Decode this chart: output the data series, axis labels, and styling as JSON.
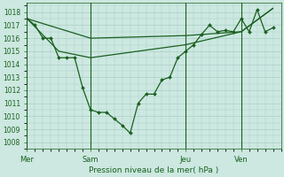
{
  "background_color": "#cce8e0",
  "grid_color": "#aacfc8",
  "line_color": "#1a6020",
  "text_color": "#1a6020",
  "xlabel": "Pression niveau de la mer( hPa )",
  "ylim": [
    1007.5,
    1018.7
  ],
  "yticks": [
    1008,
    1009,
    1010,
    1011,
    1012,
    1013,
    1014,
    1015,
    1016,
    1017,
    1018
  ],
  "day_labels": [
    "Mer",
    "Sam",
    "Jeu",
    "Ven"
  ],
  "day_positions": [
    0,
    8,
    20,
    27
  ],
  "xlim": [
    0,
    32
  ],
  "series1_x": [
    0,
    1,
    2,
    3,
    4,
    5,
    6,
    7,
    8,
    9,
    10,
    11,
    12,
    13,
    14,
    15,
    16,
    17,
    18,
    19,
    20,
    21,
    22,
    23,
    24,
    25,
    26,
    27,
    28,
    29,
    30,
    31
  ],
  "series1_y": [
    1017.5,
    1017.0,
    1016.0,
    1016.0,
    1014.5,
    1014.5,
    1014.5,
    1012.2,
    1010.5,
    1010.3,
    1010.3,
    1009.8,
    1009.3,
    1008.7,
    1011.0,
    1011.7,
    1011.7,
    1012.8,
    1013.0,
    1014.5,
    1015.0,
    1015.5,
    1016.3,
    1017.0,
    1016.5,
    1016.6,
    1016.5,
    1017.5,
    1016.5,
    1018.2,
    1016.5,
    1016.8
  ],
  "series2_x": [
    0,
    8,
    20,
    27,
    31
  ],
  "series2_y": [
    1017.5,
    1016.0,
    1016.2,
    1016.5,
    1018.3
  ],
  "series3_x": [
    0,
    4,
    8,
    20,
    27,
    31
  ],
  "series3_y": [
    1017.5,
    1015.0,
    1014.5,
    1015.5,
    1016.5,
    1018.3
  ]
}
